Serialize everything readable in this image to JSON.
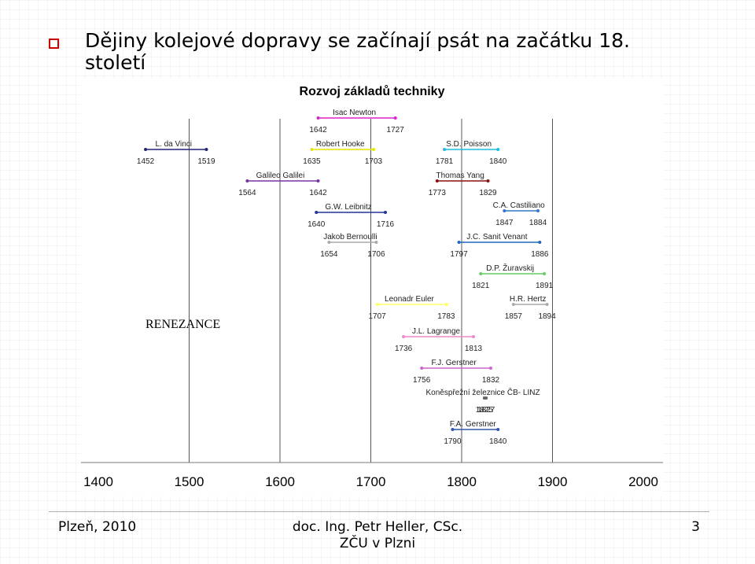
{
  "slide": {
    "title": "Dějiny kolejové dopravy se začínají psát na začátku 18. století",
    "bullet_color": "#cc0000"
  },
  "footer": {
    "left": "Plzeň, 2010",
    "center_line1": "doc. Ing. Petr Heller, CSc.",
    "center_line2": "ZČU v Plzni",
    "page_number": "3"
  },
  "chart_data": {
    "type": "timeline",
    "title": "Rozvoj základů techniky",
    "xlim": [
      1400,
      2000
    ],
    "x_ticks": [
      1400,
      1500,
      1600,
      1700,
      1800,
      1900,
      2000
    ],
    "grid": "vertical lines at 1500, 1600, 1700, 1800, 1900",
    "era_label": "RENEZANCE",
    "entries": [
      {
        "name": "Isac Newton",
        "start": 1642,
        "end": 1727,
        "color": "#dd22cc"
      },
      {
        "name": "L. da Vinci",
        "start": 1452,
        "end": 1519,
        "color": "#222277"
      },
      {
        "name": "Robert Hooke",
        "start": 1635,
        "end": 1703,
        "color": "#e6e600"
      },
      {
        "name": "S.D. Poisson",
        "start": 1781,
        "end": 1840,
        "color": "#22bbdd"
      },
      {
        "name": "Galileo Galilei",
        "start": 1564,
        "end": 1642,
        "color": "#7733aa"
      },
      {
        "name": "Thomas Yang",
        "start": 1773,
        "end": 1829,
        "color": "#881111"
      },
      {
        "name": "G.W. Leibnitz",
        "start": 1640,
        "end": 1716,
        "color": "#223399"
      },
      {
        "name": "C.A. Castiliano",
        "start": 1847,
        "end": 1884,
        "color": "#3377cc"
      },
      {
        "name": "Jakob Bernoulli",
        "start": 1654,
        "end": 1706,
        "color": "#aaaaaa"
      },
      {
        "name": "J.C. Sanit Venant",
        "start": 1797,
        "end": 1886,
        "color": "#2266bb"
      },
      {
        "name": "D.P. Žuravskij",
        "start": 1821,
        "end": 1891,
        "color": "#66cc66"
      },
      {
        "name": "Leonadr Euler",
        "start": 1707,
        "end": 1783,
        "color": "#ffff66"
      },
      {
        "name": "H.R. Hertz",
        "start": 1857,
        "end": 1894,
        "color": "#aaaaaa"
      },
      {
        "name": "J.L. Lagrange",
        "start": 1736,
        "end": 1813,
        "color": "#ee88cc"
      },
      {
        "name": "F.J. Gerstner",
        "start": 1756,
        "end": 1832,
        "color": "#cc66cc"
      },
      {
        "name": "Koněspřežní železnice ČB- LINZ",
        "start": 1825,
        "end": 1827,
        "color": "#666666"
      },
      {
        "name": "F.A. Gerstner",
        "start": 1790,
        "end": 1840,
        "color": "#3355aa"
      }
    ]
  }
}
